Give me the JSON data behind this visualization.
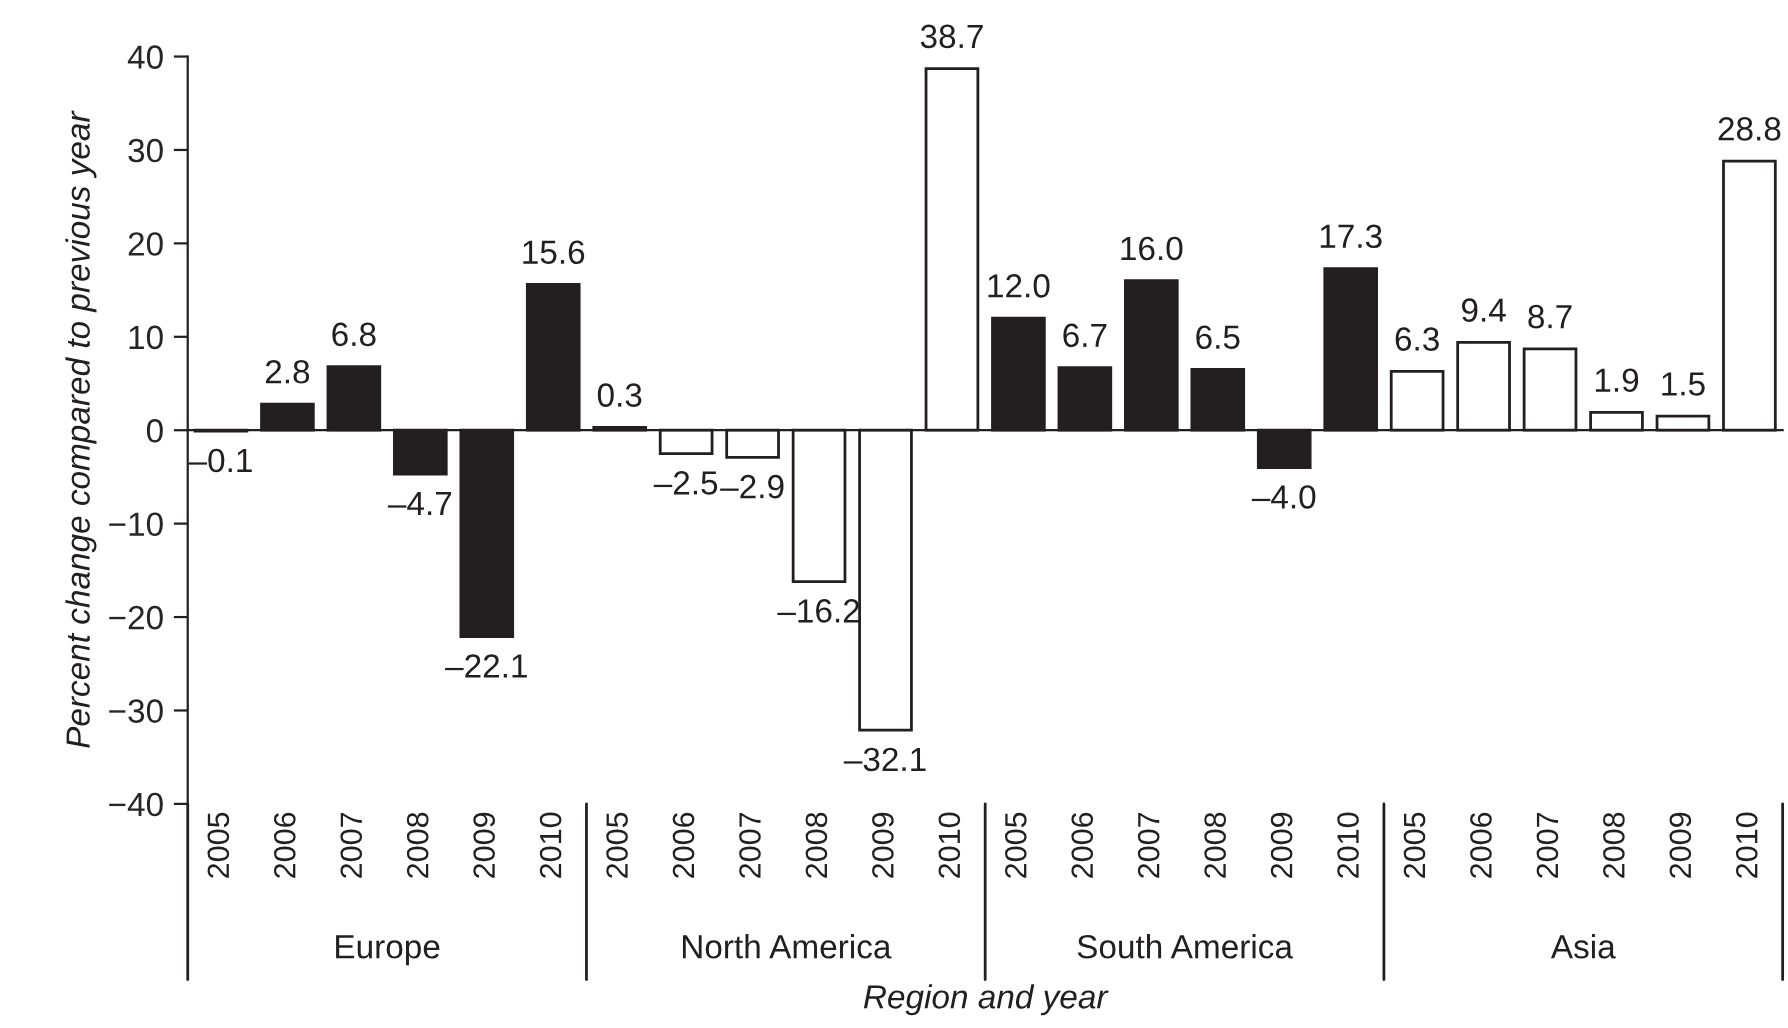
{
  "chart_data": {
    "type": "bar",
    "xlabel": "Region and year",
    "ylabel": "Percent change compared to previous year",
    "categories": [
      "2005",
      "2006",
      "2007",
      "2008",
      "2009",
      "2010",
      "2005",
      "2006",
      "2007",
      "2008",
      "2009",
      "2010",
      "2005",
      "2006",
      "2007",
      "2008",
      "2009",
      "2010",
      "2005",
      "2006",
      "2007",
      "2008",
      "2009",
      "2010"
    ],
    "values": [
      -0.1,
      2.8,
      6.8,
      -4.7,
      -22.1,
      15.6,
      0.3,
      -2.5,
      -2.9,
      -16.2,
      -32.1,
      38.7,
      12.0,
      6.7,
      16.0,
      6.5,
      -4.0,
      17.3,
      6.3,
      9.4,
      8.7,
      1.9,
      1.5,
      28.8
    ],
    "colors": [
      "#231f20",
      "#231f20",
      "#231f20",
      "#231f20",
      "#231f20",
      "#231f20",
      "#ffffff",
      "#ffffff",
      "#ffffff",
      "#ffffff",
      "#ffffff",
      "#ffffff",
      "#231f20",
      "#231f20",
      "#231f20",
      "#231f20",
      "#231f20",
      "#231f20",
      "#ffffff",
      "#ffffff",
      "#ffffff",
      "#ffffff",
      "#ffffff",
      "#ffffff"
    ],
    "annotations": [
      "Europe",
      "North America",
      "South America",
      "Asia"
    ],
    "ylim": [
      -40,
      40
    ],
    "yticks": [
      -40,
      -30,
      -20,
      -10,
      0,
      10,
      20,
      30,
      40
    ],
    "value_labels": [
      "–0.1",
      "2.8",
      "6.8",
      "–4.7",
      "–22.1",
      "15.6",
      "0.3",
      "–2.5",
      "–2.9",
      "–16.2",
      "–32.1",
      "38.7",
      "12.0",
      "6.7",
      "16.0",
      "6.5",
      "–4.0",
      "17.3",
      "6.3",
      "9.4",
      "8.7",
      "1.9",
      "1.5",
      "28.8"
    ]
  }
}
